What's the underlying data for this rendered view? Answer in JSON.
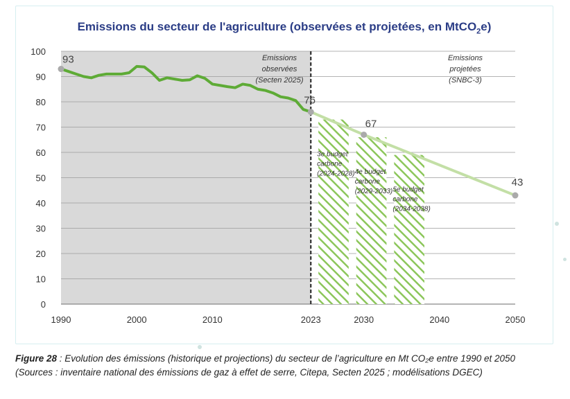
{
  "title": {
    "pre": "Emissions du secteur de l'agriculture (observées et projetées, en MtCO",
    "sub": "2",
    "post": "e)"
  },
  "caption": {
    "figure": "Figure 28",
    "text": " : Evolution des émissions (historique et projections) du secteur de l’agriculture en Mt CO₂e entre 1990 et 2050 (Sources : inventaire national des émissions de gaz à effet de serre, Citepa, Secten 2025 ; modélisations DGEC)"
  },
  "colors": {
    "observed_line": "#5eab36",
    "projected_line": "#c3dfa6",
    "observed_bg": "#d9d9d9",
    "hatch": "#8cc65a",
    "title": "#2b3d86",
    "marker": "#aaaaaa"
  },
  "chart_data": {
    "type": "line",
    "title": "Emissions du secteur de l'agriculture (observées et projetées, en MtCO2e)",
    "ylim": [
      0,
      100
    ],
    "yticks": [
      0,
      10,
      20,
      30,
      40,
      50,
      60,
      70,
      80,
      90,
      100
    ],
    "xlim": [
      1990,
      2050
    ],
    "xtick_labels": [
      "1990",
      "2000",
      "2010",
      "2023",
      "2030",
      "2040",
      "2050"
    ],
    "grid": true,
    "series": [
      {
        "kind": "observed",
        "x": [
          1990,
          1991,
          1992,
          1993,
          1994,
          1995,
          1996,
          1997,
          1998,
          1999,
          2000,
          2001,
          2002,
          2003,
          2004,
          2005,
          2006,
          2007,
          2008,
          2009,
          2010,
          2011,
          2012,
          2013,
          2014,
          2015,
          2016,
          2017,
          2018,
          2019,
          2020,
          2021,
          2022,
          2023
        ],
        "values": [
          93,
          92,
          91,
          90,
          89.5,
          90.5,
          91,
          91,
          91,
          91.5,
          94,
          93.8,
          91.5,
          88.5,
          89.5,
          89,
          88.5,
          88.7,
          90.3,
          89.3,
          87,
          86.5,
          86,
          85.6,
          87,
          86.5,
          85,
          84.5,
          83.5,
          82,
          81.5,
          80.5,
          77,
          76
        ]
      },
      {
        "kind": "projected",
        "x": [
          2023,
          2030,
          2050
        ],
        "values": [
          76,
          67,
          43
        ]
      }
    ],
    "point_labels": [
      {
        "x": 1990,
        "value": 93,
        "text": "93"
      },
      {
        "x": 2023,
        "value": 76,
        "text": "76"
      },
      {
        "x": 2030,
        "value": 67,
        "text": "67"
      },
      {
        "x": 2050,
        "value": 43,
        "text": "43"
      }
    ],
    "annotations": {
      "observed": [
        "Emissions",
        "observées",
        "(Secten 2025)"
      ],
      "projected": [
        "Emissions",
        "projetées",
        "(SNBC-3)"
      ]
    },
    "carbon_budgets": [
      {
        "x_start": 2024,
        "x_end": 2028,
        "value": 73,
        "lines": [
          "3e budget",
          "carbone",
          "(2024-2028)"
        ]
      },
      {
        "x_start": 2029,
        "x_end": 2033,
        "value": 66,
        "lines": [
          "4e budget",
          "carbone",
          "(2029-2033)"
        ]
      },
      {
        "x_start": 2034,
        "x_end": 2038,
        "value": 59,
        "lines": [
          "5e budget",
          "carbone",
          "(2034-2038)"
        ]
      }
    ],
    "divider_x": 2023
  }
}
